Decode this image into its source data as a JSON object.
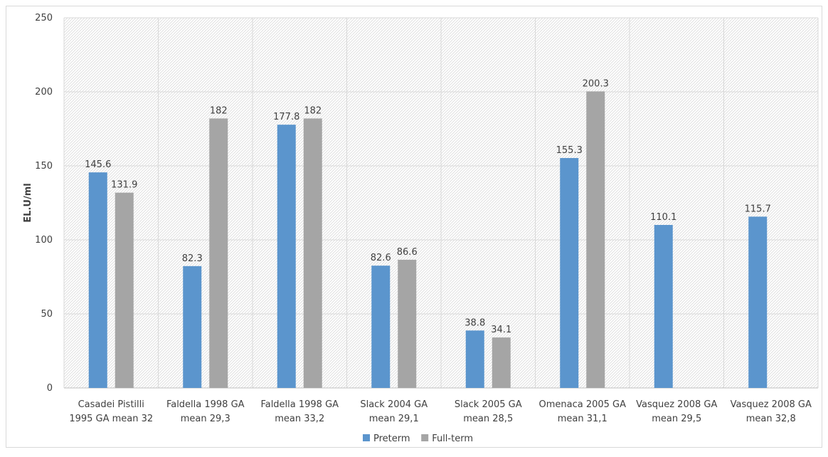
{
  "chart_data": {
    "type": "bar",
    "title": "",
    "xlabel": "",
    "ylabel": "EL.U/ml",
    "ylim": [
      0,
      250
    ],
    "yticks": [
      0,
      50,
      100,
      150,
      200,
      250
    ],
    "grid": true,
    "legend_position": "bottom",
    "categories": [
      [
        "Casadei Pistilli",
        "1995 GA mean 32"
      ],
      [
        "Faldella 1998 GA",
        "mean 29,3"
      ],
      [
        "Faldella 1998 GA",
        "mean 33,2"
      ],
      [
        "Slack 2004 GA",
        "mean 29,1"
      ],
      [
        "Slack 2005 GA",
        "mean 28,5"
      ],
      [
        "Omenaca 2005 GA",
        "mean 31,1"
      ],
      [
        "Vasquez 2008 GA",
        "mean 29,5"
      ],
      [
        "Vasquez 2008 GA",
        "mean 32,8"
      ]
    ],
    "series": [
      {
        "name": "Preterm",
        "color": "#5b95cd",
        "values": [
          145.6,
          82.3,
          177.8,
          82.6,
          38.8,
          155.3,
          110.1,
          115.7
        ],
        "labels": [
          "145.6",
          "82.3",
          "177.8",
          "82.6",
          "38.8",
          "155.3",
          "110.1",
          "115.7"
        ]
      },
      {
        "name": "Full-term",
        "color": "#a5a5a5",
        "values": [
          131.9,
          182,
          182,
          86.6,
          34.1,
          200.3,
          null,
          null
        ],
        "labels": [
          "131.9",
          "182",
          "182",
          "86.6",
          "34.1",
          "200.3",
          null,
          null
        ]
      }
    ]
  }
}
